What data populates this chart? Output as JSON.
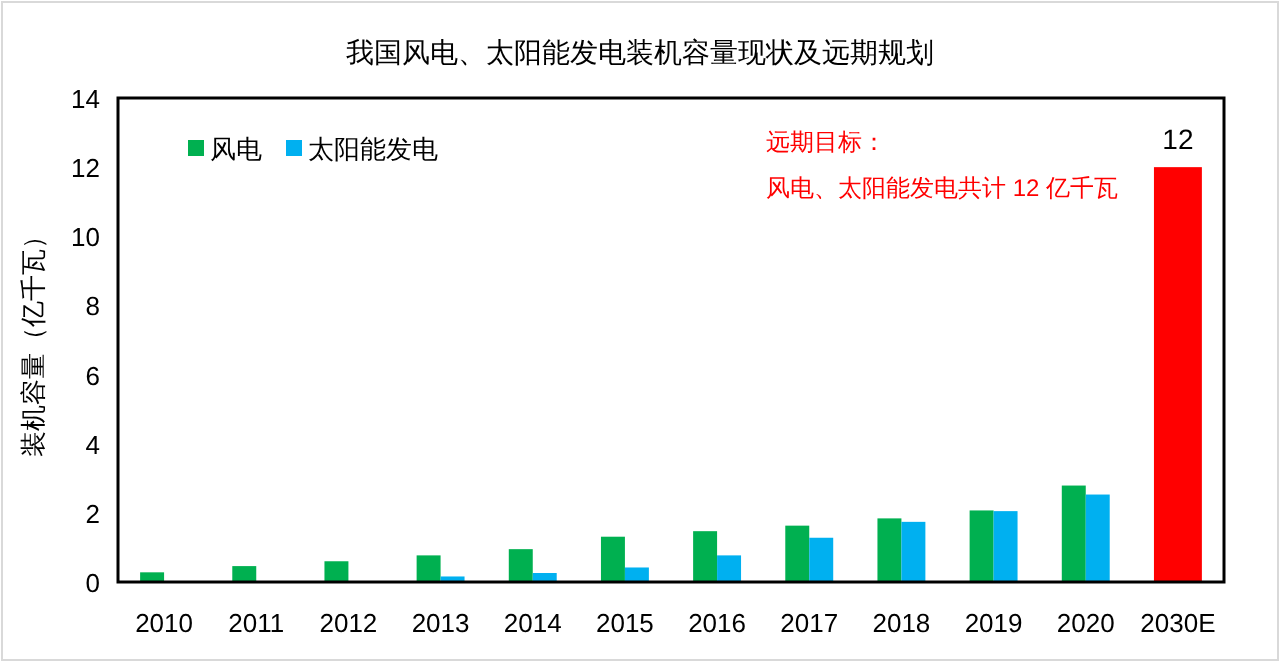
{
  "chart_data": {
    "type": "bar",
    "title": "我国风电、太阳能发电装机容量现状及远期规划",
    "ylabel": "装机容量（亿千瓦）",
    "categories": [
      "2010",
      "2011",
      "2012",
      "2013",
      "2014",
      "2015",
      "2016",
      "2017",
      "2018",
      "2019",
      "2020",
      "2030E"
    ],
    "series": [
      {
        "name": "风电",
        "color": "#00b050",
        "values": [
          0.28,
          0.46,
          0.6,
          0.77,
          0.95,
          1.31,
          1.47,
          1.63,
          1.84,
          2.07,
          2.79,
          null
        ]
      },
      {
        "name": "太阳能发电",
        "color": "#00b0f0",
        "values": [
          0,
          0,
          0,
          0.16,
          0.26,
          0.42,
          0.77,
          1.28,
          1.74,
          2.05,
          2.53,
          null
        ]
      },
      {
        "color": "#ff0000",
        "values": [
          null,
          null,
          null,
          null,
          null,
          null,
          null,
          null,
          null,
          null,
          null,
          12
        ],
        "value_labels": [
          null,
          null,
          null,
          null,
          null,
          null,
          null,
          null,
          null,
          null,
          null,
          "12"
        ]
      }
    ],
    "annotations": [
      "远期目标：",
      "风电、太阳能发电共计 12 亿千瓦"
    ],
    "ylim": [
      0,
      14
    ],
    "yticks": [
      0,
      2,
      4,
      6,
      8,
      10,
      12,
      14
    ],
    "grid": false,
    "legend": "top left"
  }
}
